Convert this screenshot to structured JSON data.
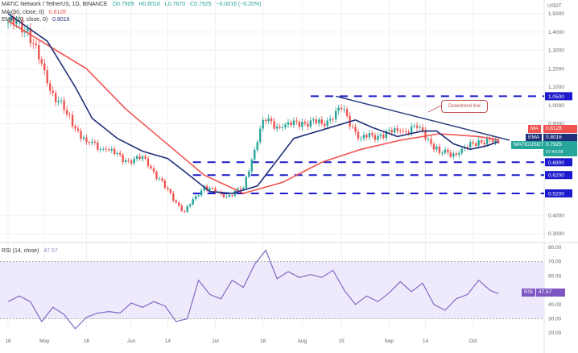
{
  "header": {
    "symbol": "MATIC Network / TetherUS, 1D, BINANCE",
    "open": "O0.7909",
    "high": "H0.8018",
    "low": "L0.7870",
    "close": "C0.7925",
    "change": "−0.0016 (−0.20%)",
    "ma_label": "MA (50, close, 0)",
    "ma_value": "0.8128",
    "ema_label": "EMA (20, close, 0)",
    "ema_value": "0.8016",
    "rsi_label": "RSI (14, close)",
    "rsi_value": "47.57"
  },
  "colors": {
    "up": "#26a69a",
    "down": "#ef5350",
    "ma": "#ef5350",
    "ema": "#1f2f7a",
    "levels": "#1a1acc",
    "trendline": "#2f3f7f",
    "rsi": "#7e6bc4",
    "rsi_band": "#efeafb"
  },
  "badges": {
    "ma": {
      "tag": "MA",
      "value": "0.8128"
    },
    "ema": {
      "tag": "EMA",
      "value": "0.8016"
    },
    "price": {
      "tag": "MATICUSDT",
      "value": "0.7925",
      "countdown": "07:40:28"
    },
    "rsi": {
      "tag": "RSI",
      "value": "47.57"
    }
  },
  "annotation": "Downtrend line",
  "chart_data": [
    {
      "type": "candlestick",
      "title": "MATIC Network / TetherUS, 1D, BINANCE",
      "y_unit": "USDT",
      "ylim": [
        0.27,
        1.58
      ],
      "y_ticks": [
        "1.5000",
        "1.4000",
        "1.3000",
        "1.2000",
        "1.1000",
        "1.0000",
        "0.9000",
        "0.4000",
        "0.3000"
      ],
      "x_ticks": [
        {
          "label": "18",
          "date": "2022-04-18"
        },
        {
          "label": "May",
          "date": "2022-05-01"
        },
        {
          "label": "16",
          "date": "2022-05-16"
        },
        {
          "label": "Jun",
          "date": "2022-06-01"
        },
        {
          "label": "14",
          "date": "2022-06-14"
        },
        {
          "label": "Jul",
          "date": "2022-07-01"
        },
        {
          "label": "18",
          "date": "2022-07-18"
        },
        {
          "label": "Aug",
          "date": "2022-08-01"
        },
        {
          "label": "15",
          "date": "2022-08-15"
        },
        {
          "label": "Sep",
          "date": "2022-09-01"
        },
        {
          "label": "14",
          "date": "2022-09-14"
        },
        {
          "label": "Oct",
          "date": "2022-10-01"
        }
      ],
      "weekly_closes": [
        [
          "2022-04-18",
          1.45
        ],
        [
          "2022-04-25",
          1.42
        ],
        [
          "2022-05-02",
          1.12
        ],
        [
          "2022-05-09",
          0.95
        ],
        [
          "2022-05-16",
          0.8
        ],
        [
          "2022-05-23",
          0.76
        ],
        [
          "2022-05-30",
          0.7
        ],
        [
          "2022-06-06",
          0.71
        ],
        [
          "2022-06-13",
          0.55
        ],
        [
          "2022-06-20",
          0.42
        ],
        [
          "2022-06-27",
          0.56
        ],
        [
          "2022-07-04",
          0.5
        ],
        [
          "2022-07-11",
          0.55
        ],
        [
          "2022-07-18",
          0.92
        ],
        [
          "2022-07-25",
          0.88
        ],
        [
          "2022-08-01",
          0.91
        ],
        [
          "2022-08-08",
          0.9
        ],
        [
          "2022-08-15",
          0.98
        ],
        [
          "2022-08-22",
          0.82
        ],
        [
          "2022-08-29",
          0.84
        ],
        [
          "2022-09-05",
          0.86
        ],
        [
          "2022-09-12",
          0.88
        ],
        [
          "2022-09-19",
          0.74
        ],
        [
          "2022-09-26",
          0.74
        ],
        [
          "2022-10-03",
          0.81
        ],
        [
          "2022-10-10",
          0.7925
        ]
      ],
      "series": [
        {
          "name": "MA",
          "values": [
            [
              "2022-04-18",
              1.46
            ],
            [
              "2022-05-16",
              1.2
            ],
            [
              "2022-05-30",
              0.98
            ],
            [
              "2022-06-13",
              0.8
            ],
            [
              "2022-06-27",
              0.62
            ],
            [
              "2022-07-11",
              0.52
            ],
            [
              "2022-07-25",
              0.58
            ],
            [
              "2022-08-08",
              0.69
            ],
            [
              "2022-08-22",
              0.76
            ],
            [
              "2022-09-05",
              0.81
            ],
            [
              "2022-09-19",
              0.845
            ],
            [
              "2022-10-03",
              0.83
            ],
            [
              "2022-10-10",
              0.8128
            ]
          ]
        },
        {
          "name": "EMA",
          "values": [
            [
              "2022-04-18",
              1.5
            ],
            [
              "2022-05-02",
              1.35
            ],
            [
              "2022-05-12",
              1.1
            ],
            [
              "2022-05-18",
              0.93
            ],
            [
              "2022-05-27",
              0.82
            ],
            [
              "2022-06-05",
              0.75
            ],
            [
              "2022-06-14",
              0.71
            ],
            [
              "2022-06-20",
              0.64
            ],
            [
              "2022-06-29",
              0.53
            ],
            [
              "2022-07-07",
              0.52
            ],
            [
              "2022-07-16",
              0.56
            ],
            [
              "2022-07-22",
              0.68
            ],
            [
              "2022-07-29",
              0.82
            ],
            [
              "2022-08-09",
              0.87
            ],
            [
              "2022-08-20",
              0.92
            ],
            [
              "2022-08-26",
              0.88
            ],
            [
              "2022-09-04",
              0.83
            ],
            [
              "2022-09-13",
              0.86
            ],
            [
              "2022-09-18",
              0.86
            ],
            [
              "2022-09-24",
              0.79
            ],
            [
              "2022-09-30",
              0.76
            ],
            [
              "2022-10-06",
              0.78
            ],
            [
              "2022-10-10",
              0.8016
            ]
          ]
        }
      ],
      "horizontal_levels": [
        {
          "value": 1.05,
          "label": "1.0500",
          "from": "2022-08-04"
        },
        {
          "value": 0.69,
          "label": "0.6900",
          "from": "2022-06-23"
        },
        {
          "value": 0.62,
          "label": "0.6200",
          "from": "2022-06-23"
        },
        {
          "value": 0.52,
          "label": "0.5200",
          "from": "2022-06-23"
        }
      ],
      "trendline": [
        [
          "2022-08-13",
          1.05
        ],
        [
          "2022-10-14",
          0.81
        ]
      ]
    },
    {
      "type": "line",
      "title": "RSI (14, close)",
      "ylim": [
        20,
        80
      ],
      "y_ticks": [
        "80.00",
        "70.00",
        "60.00",
        "40.00",
        "30.00",
        "20.00"
      ],
      "band": [
        30,
        70
      ],
      "values": [
        [
          "2022-04-18",
          42
        ],
        [
          "2022-04-22",
          46
        ],
        [
          "2022-04-26",
          42
        ],
        [
          "2022-04-30",
          28
        ],
        [
          "2022-05-04",
          38
        ],
        [
          "2022-05-08",
          33
        ],
        [
          "2022-05-12",
          23
        ],
        [
          "2022-05-16",
          31
        ],
        [
          "2022-05-20",
          34
        ],
        [
          "2022-05-24",
          35
        ],
        [
          "2022-05-28",
          34
        ],
        [
          "2022-06-01",
          41
        ],
        [
          "2022-06-05",
          38
        ],
        [
          "2022-06-09",
          42
        ],
        [
          "2022-06-13",
          39
        ],
        [
          "2022-06-17",
          28
        ],
        [
          "2022-06-21",
          30
        ],
        [
          "2022-06-25",
          57
        ],
        [
          "2022-06-29",
          47
        ],
        [
          "2022-07-03",
          44
        ],
        [
          "2022-07-07",
          57
        ],
        [
          "2022-07-11",
          52
        ],
        [
          "2022-07-15",
          68
        ],
        [
          "2022-07-19",
          78
        ],
        [
          "2022-07-23",
          58
        ],
        [
          "2022-07-27",
          63
        ],
        [
          "2022-07-31",
          59
        ],
        [
          "2022-08-04",
          61
        ],
        [
          "2022-08-08",
          59
        ],
        [
          "2022-08-12",
          64
        ],
        [
          "2022-08-16",
          50
        ],
        [
          "2022-08-20",
          40
        ],
        [
          "2022-08-24",
          46
        ],
        [
          "2022-08-28",
          42
        ],
        [
          "2022-09-01",
          48
        ],
        [
          "2022-09-05",
          56
        ],
        [
          "2022-09-09",
          49
        ],
        [
          "2022-09-13",
          55
        ],
        [
          "2022-09-17",
          40
        ],
        [
          "2022-09-21",
          36
        ],
        [
          "2022-09-25",
          44
        ],
        [
          "2022-09-29",
          47
        ],
        [
          "2022-10-03",
          57
        ],
        [
          "2022-10-07",
          50
        ],
        [
          "2022-10-10",
          47.57
        ]
      ]
    }
  ]
}
